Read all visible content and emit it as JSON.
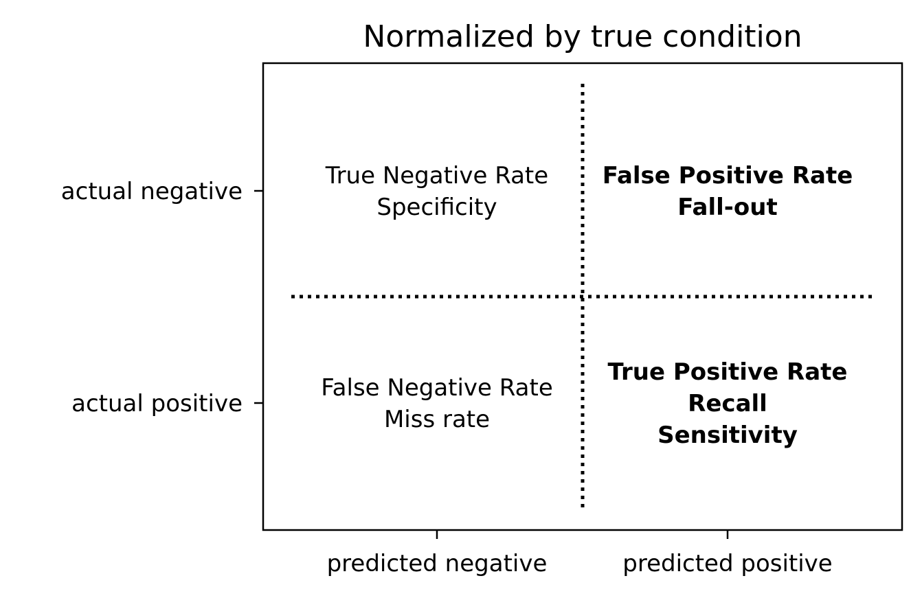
{
  "title": "Normalized by true condition",
  "rows": [
    {
      "label": "actual negative"
    },
    {
      "label": "actual positive"
    }
  ],
  "columns": [
    {
      "label": "predicted negative"
    },
    {
      "label": "predicted positive"
    }
  ],
  "cells": [
    {
      "row": 0,
      "col": 0,
      "bold": false,
      "lines": [
        "True Negative Rate",
        "Specificity"
      ]
    },
    {
      "row": 0,
      "col": 1,
      "bold": true,
      "lines": [
        "False Positive Rate",
        "Fall-out"
      ]
    },
    {
      "row": 1,
      "col": 0,
      "bold": false,
      "lines": [
        "False Negative Rate",
        "Miss rate"
      ]
    },
    {
      "row": 1,
      "col": 1,
      "bold": true,
      "lines": [
        "True Positive Rate",
        "Recall",
        "Sensitivity"
      ]
    }
  ],
  "colors": {
    "ink": "#000000",
    "background": "#ffffff"
  }
}
